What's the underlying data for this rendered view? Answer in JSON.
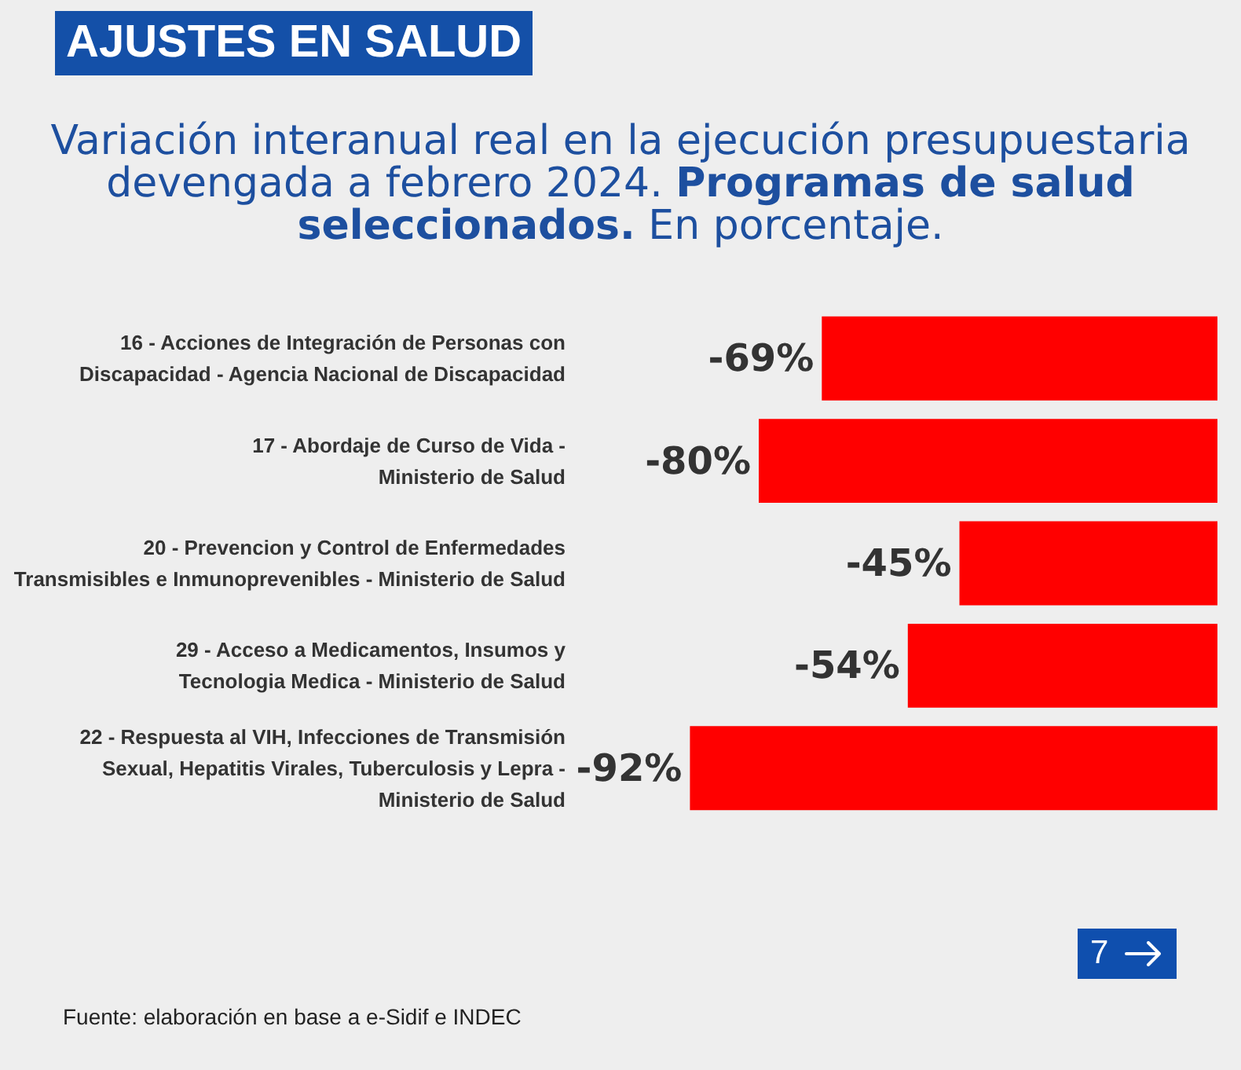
{
  "chart_data": {
    "type": "bar",
    "orientation": "horizontal",
    "title": "AJUSTES EN SALUD",
    "subtitle": "Variación interanual real en la ejecución presupuestaria devengada a febrero 2024. Programas de salud seleccionados. En porcentaje.",
    "categories": [
      "16 - Acciones de Integración de Personas con\nDiscapacidad - Agencia Nacional de Discapacidad",
      "17 - Abordaje de Curso de Vida -\nMinisterio de Salud",
      "20 - Prevencion y Control de Enfermedades\nTransmisibles e Inmunoprevenibles - Ministerio de Salud",
      "29 - Acceso a Medicamentos, Insumos y\nTecnologia Medica - Ministerio de Salud",
      "22 - Respuesta al VIH, Infecciones de Transmisión\nSexual, Hepatitis Virales, Tuberculosis y Lepra -\nMinisterio de Salud"
    ],
    "values": [
      -69,
      -80,
      -45,
      -54,
      -92
    ],
    "value_labels": [
      "-69%",
      "-80%",
      "-45%",
      "-54%",
      "-92%"
    ],
    "color": "#ff0000",
    "tick_labels": "y",
    "annotations": [
      "Fuente: elaboración en base a e-Sidif e INDEC",
      "7"
    ]
  }
}
